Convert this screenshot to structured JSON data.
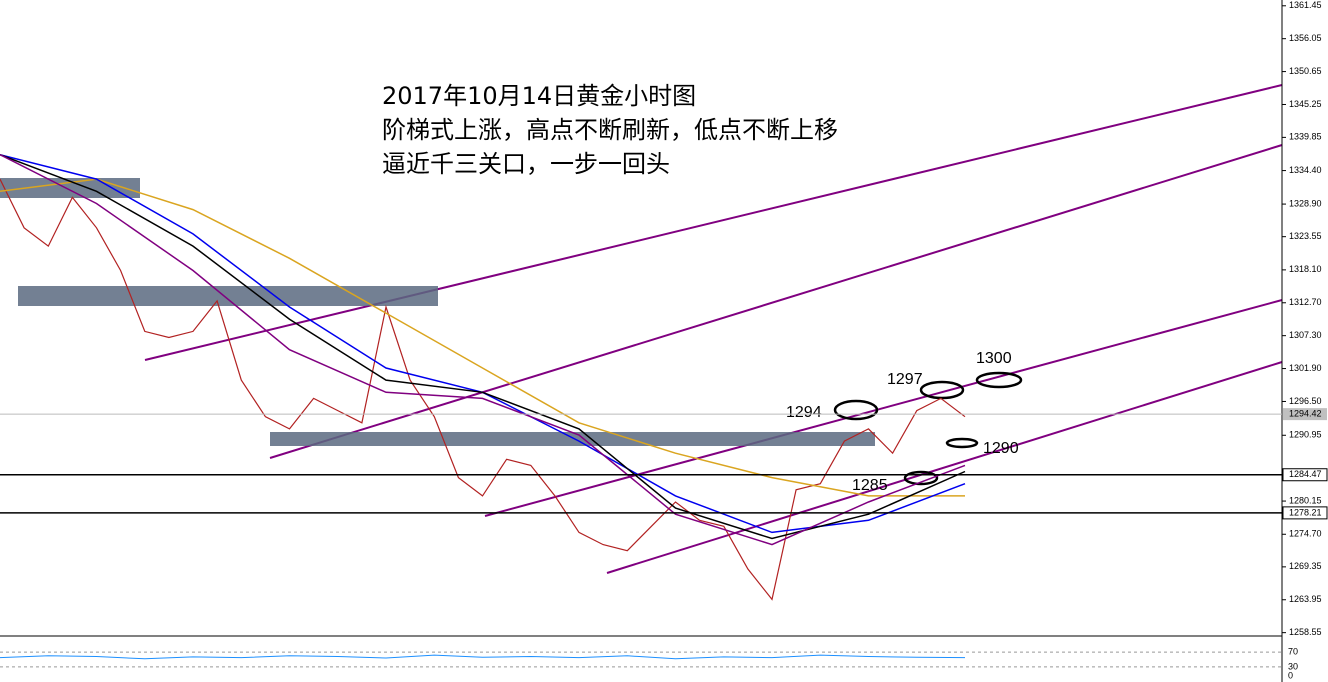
{
  "chart_data": {
    "type": "line",
    "title": "2017年10月14日黄金小时图",
    "subtitle": [
      "阶梯式上涨，高点不断刷新，低点不断上移",
      "逼近千三关口，一步一回头"
    ],
    "ylim": [
      1258.0,
      1362.4
    ],
    "yticks": [
      {
        "value": 1361.45,
        "label": "1361.45"
      },
      {
        "value": 1356.05,
        "label": "1356.05"
      },
      {
        "value": 1350.65,
        "label": "1350.65"
      },
      {
        "value": 1345.25,
        "label": "1345.25"
      },
      {
        "value": 1339.85,
        "label": "1339.85"
      },
      {
        "value": 1334.4,
        "label": "1334.40"
      },
      {
        "value": 1328.9,
        "label": "1328.90"
      },
      {
        "value": 1323.55,
        "label": "1323.55"
      },
      {
        "value": 1318.1,
        "label": "1318.10"
      },
      {
        "value": 1312.7,
        "label": "1312.70"
      },
      {
        "value": 1307.3,
        "label": "1307.30"
      },
      {
        "value": 1301.9,
        "label": "1301.90"
      },
      {
        "value": 1296.5,
        "label": "1296.50"
      },
      {
        "value": 1290.95,
        "label": "1290.95"
      },
      {
        "value": 1280.15,
        "label": "1280.15"
      },
      {
        "value": 1274.7,
        "label": "1274.70"
      },
      {
        "value": 1269.35,
        "label": "1269.35"
      },
      {
        "value": 1263.95,
        "label": "1263.95"
      },
      {
        "value": 1258.55,
        "label": "1258.55"
      }
    ],
    "series": [
      {
        "name": null,
        "color": "#b22222",
        "width": 1.2,
        "values": [
          1333,
          1325,
          1322,
          1330,
          1325,
          1318,
          1308,
          1307,
          1308,
          1313,
          1300,
          1294,
          1292,
          1297,
          1295,
          1293,
          1312,
          1300,
          1294,
          1284,
          1281,
          1287,
          1286,
          1281,
          1275,
          1273,
          1272,
          1276,
          1280,
          1277,
          1276,
          1269,
          1264,
          1282,
          1283,
          1290,
          1292,
          1288,
          1295,
          1297,
          1294
        ]
      },
      {
        "name": null,
        "color": "#daa520",
        "width": 1.5,
        "values": [
          1331,
          1333,
          1328,
          1320,
          1311,
          1302,
          1293,
          1288,
          1284,
          1281,
          1281
        ]
      },
      {
        "name": null,
        "color": "#0000ee",
        "width": 1.5,
        "values": [
          1337,
          1333,
          1324,
          1312,
          1302,
          1298,
          1290,
          1281,
          1275,
          1277,
          1283
        ]
      },
      {
        "name": null,
        "color": "#000000",
        "width": 1.5,
        "values": [
          1337,
          1331,
          1322,
          1310,
          1300,
          1298,
          1292,
          1279,
          1274,
          1278,
          1285
        ]
      },
      {
        "name": null,
        "color": "#800080",
        "width": 1.5,
        "values": [
          1337,
          1329,
          1318,
          1305,
          1298,
          1297,
          1291,
          1278,
          1273,
          1280,
          1286
        ]
      }
    ],
    "current_price": 1294.42,
    "price_levels": [
      1284.47,
      1278.21
    ],
    "annotations": [
      "1294",
      "1297",
      "1300",
      "1290",
      "1285"
    ],
    "rsi": {
      "ylim": [
        0,
        100
      ],
      "yticks": [
        70,
        30,
        0
      ],
      "color": "#1e90ff",
      "values": [
        55,
        60,
        58,
        52,
        57,
        55,
        60,
        58,
        54,
        62,
        56,
        58,
        55,
        60,
        52,
        57,
        55,
        62,
        58,
        56,
        55
      ]
    }
  }
}
